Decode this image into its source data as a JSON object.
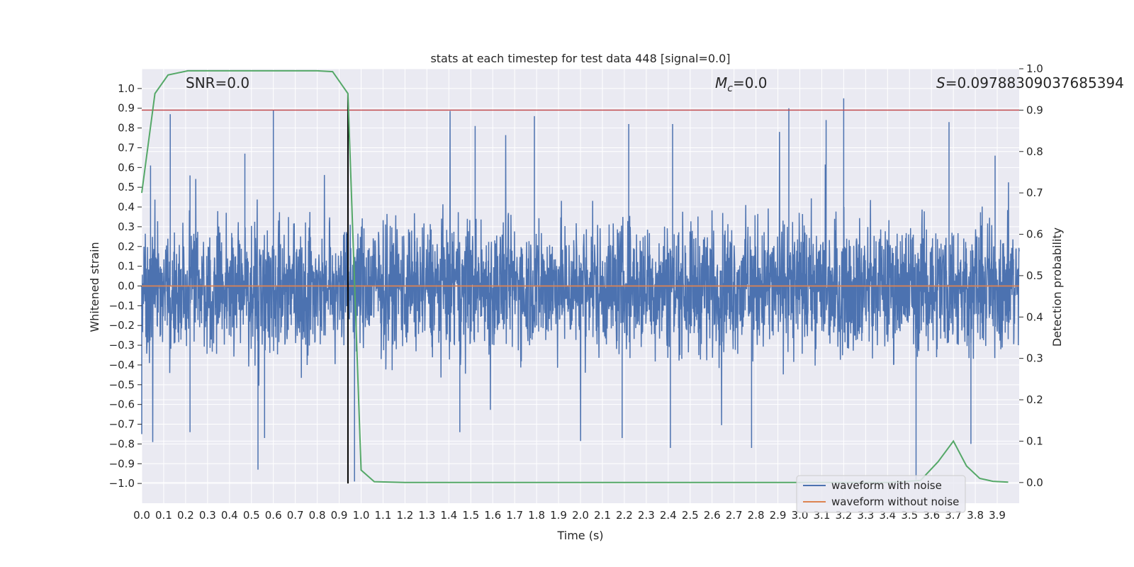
{
  "chart_data": {
    "type": "line",
    "title": "stats at each timestep for test data 448 [signal=0.0]",
    "xlabel": "Time (s)",
    "ylabel": "Whitened strain",
    "ylabel_right": "Detection probability",
    "xlim": [
      0.0,
      4.0
    ],
    "ylim": [
      -1.1,
      1.1
    ],
    "ylim_right": [
      -0.05,
      1.0
    ],
    "x_ticks": [
      "0.0",
      "0.1",
      "0.2",
      "0.3",
      "0.4",
      "0.5",
      "0.6",
      "0.7",
      "0.8",
      "0.9",
      "1.0",
      "1.1",
      "1.2",
      "1.3",
      "1.4",
      "1.5",
      "1.6",
      "1.7",
      "1.8",
      "1.9",
      "2.0",
      "2.1",
      "2.2",
      "2.3",
      "2.4",
      "2.5",
      "2.6",
      "2.7",
      "2.8",
      "2.9",
      "3.0",
      "3.1",
      "3.2",
      "3.3",
      "3.4",
      "3.5",
      "3.6",
      "3.7",
      "3.8",
      "3.9"
    ],
    "y_ticks": [
      "1.0",
      "0.9",
      "0.8",
      "0.7",
      "0.6",
      "0.5",
      "0.4",
      "0.3",
      "0.2",
      "0.1",
      "0.0",
      "−0.1",
      "−0.2",
      "−0.3",
      "−0.4",
      "−0.5",
      "−0.6",
      "−0.7",
      "−0.8",
      "−0.9",
      "−1.0"
    ],
    "y_ticks_right": [
      "1.0",
      "0.9",
      "0.8",
      "0.7",
      "0.6",
      "0.5",
      "0.4",
      "0.3",
      "0.2",
      "0.1",
      "0.0"
    ],
    "grid": true,
    "legend_position": "lower-right",
    "annotations": {
      "snr": "SNR=0.0",
      "mc_label": "M",
      "mc_sub": "c",
      "mc_value": "=0.0",
      "s_label": "S",
      "s_value": "=0.09788309037685394"
    },
    "series": [
      {
        "name": "waveform with noise",
        "color": "#4c72b0",
        "axis": "left",
        "noise_amplitude": 0.25,
        "peaks": [
          {
            "x": 0.04,
            "y": 0.61
          },
          {
            "x": 0.13,
            "y": 0.87
          },
          {
            "x": 0.22,
            "y": 0.56
          },
          {
            "x": 0.47,
            "y": 0.67
          },
          {
            "x": 0.6,
            "y": 0.89
          },
          {
            "x": 1.52,
            "y": 0.81
          },
          {
            "x": 1.79,
            "y": 0.86
          },
          {
            "x": 2.22,
            "y": 0.82
          },
          {
            "x": 2.42,
            "y": 0.82
          },
          {
            "x": 2.95,
            "y": 0.9
          },
          {
            "x": 3.12,
            "y": 0.84
          },
          {
            "x": 3.2,
            "y": 0.95
          },
          {
            "x": 3.68,
            "y": 0.83
          },
          {
            "x": 3.89,
            "y": 0.66
          },
          {
            "x": 0.0,
            "y": -0.75
          },
          {
            "x": 0.22,
            "y": -0.74
          },
          {
            "x": 0.53,
            "y": -0.93
          },
          {
            "x": 0.56,
            "y": -0.77
          },
          {
            "x": 0.97,
            "y": -0.99
          },
          {
            "x": 1.45,
            "y": -0.74
          },
          {
            "x": 2.19,
            "y": -0.77
          },
          {
            "x": 2.41,
            "y": -0.82
          },
          {
            "x": 2.78,
            "y": -0.82
          },
          {
            "x": 3.53,
            "y": -0.98
          },
          {
            "x": 3.78,
            "y": -0.8
          }
        ]
      },
      {
        "name": "waveform without noise",
        "color": "#dd8452",
        "axis": "left",
        "y_constant": 0.0
      },
      {
        "name": "detection probability",
        "color": "#55a868",
        "axis": "right",
        "x": [
          0.0,
          0.06,
          0.12,
          0.21,
          0.3,
          0.4,
          0.5,
          0.6,
          0.7,
          0.8,
          0.87,
          0.94,
          1.0,
          1.06,
          1.2,
          1.5,
          2.0,
          2.5,
          3.0,
          3.4,
          3.55,
          3.63,
          3.7,
          3.76,
          3.82,
          3.88,
          3.95
        ],
        "y": [
          0.7,
          0.94,
          0.985,
          0.995,
          0.995,
          0.995,
          0.995,
          0.995,
          0.995,
          0.995,
          0.993,
          0.94,
          0.03,
          0.002,
          0.0,
          0.0,
          0.0,
          0.0,
          0.0,
          0.0,
          0.005,
          0.05,
          0.1,
          0.04,
          0.01,
          0.003,
          0.001
        ]
      }
    ],
    "threshold_line": {
      "y_right": 0.9,
      "color": "#c44e52"
    },
    "vertical_marker": {
      "x": 0.94,
      "y_left_range": [
        -1.0,
        0.97
      ],
      "color": "#000000"
    }
  }
}
